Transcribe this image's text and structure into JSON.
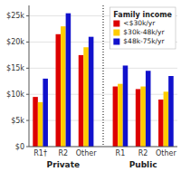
{
  "chart_data": {
    "type": "bar",
    "categories": [
      "R1†",
      "R2",
      "Other",
      "R1",
      "R2",
      "Other"
    ],
    "annotations": [
      "Private",
      "Public"
    ],
    "series": [
      {
        "name": "<$30k/yr",
        "color": "#dd0000",
        "values": [
          9500,
          21500,
          17500,
          11500,
          11000,
          9000
        ]
      },
      {
        "name": "$30k-48k/yr",
        "color": "#ffcc00",
        "values": [
          8500,
          23000,
          19000,
          12000,
          11500,
          10500
        ]
      },
      {
        "name": "$48k-75k/yr",
        "color": "#1111cc",
        "values": [
          13000,
          25500,
          21000,
          15500,
          14500,
          13500
        ]
      }
    ],
    "legend_title": "Family income",
    "legend": "upper right",
    "ylim": [
      0,
      27000
    ],
    "yticks": [
      {
        "value": 0,
        "label": "$0"
      },
      {
        "value": 5000,
        "label": "$5k"
      },
      {
        "value": 10000,
        "label": "$10k"
      },
      {
        "value": 15000,
        "label": "$15k"
      },
      {
        "value": 20000,
        "label": "$20k"
      },
      {
        "value": 25000,
        "label": "$25k"
      }
    ],
    "grid": true
  }
}
